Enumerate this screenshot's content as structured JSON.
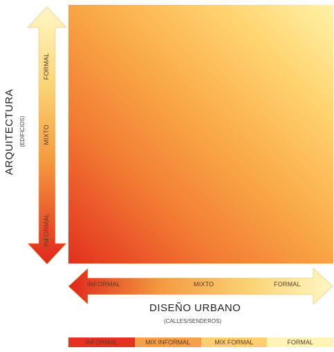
{
  "vertical_axis": {
    "title": "ARQUITECTURA",
    "subtitle": "(EDIFICIOS)",
    "levels": {
      "top": "FORMAL",
      "middle": "MIXTO",
      "bottom": "INFORMAL"
    }
  },
  "horizontal_axis": {
    "title": "DISEÑO URBANO",
    "subtitle": "(CALLES/SENDEROS)",
    "levels": {
      "left": "INFORMAL",
      "middle": "MIXTO",
      "right": "FORMAL"
    }
  },
  "legend": [
    {
      "label": "INFORMAL",
      "color": "#e53224"
    },
    {
      "label": "MIX INFORMAL",
      "color": "#f5a04a"
    },
    {
      "label": "MIX FORMAL",
      "color": "#fcd070"
    },
    {
      "label": "FORMAL",
      "color": "#fff4b8"
    }
  ],
  "colors": {
    "informal": "#e2301f",
    "formal": "#fff2a8"
  }
}
